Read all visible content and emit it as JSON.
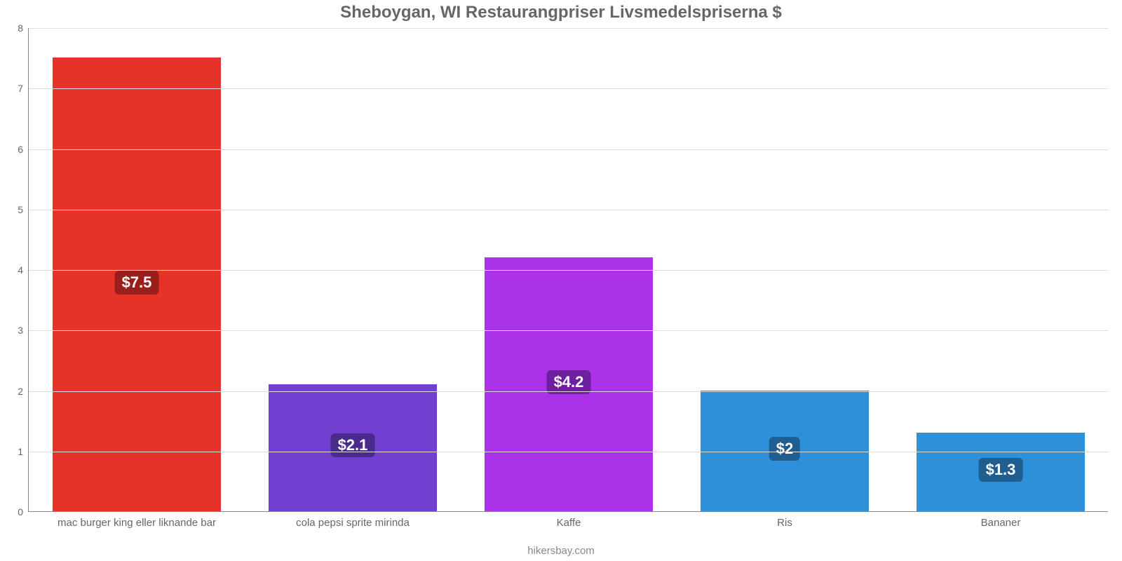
{
  "chart": {
    "type": "bar",
    "title": "Sheboygan, WI Restaurangpriser Livsmedelspriserna $",
    "title_color": "#666666",
    "title_fontsize": 24,
    "source": "hikersbay.com",
    "background_color": "#ffffff",
    "axis_color": "#888888",
    "grid_color": "#dddddd",
    "tick_label_color": "#666666",
    "ylim": [
      0,
      8
    ],
    "ytick_step": 1,
    "yticks": [
      0,
      1,
      2,
      3,
      4,
      5,
      6,
      7,
      8
    ],
    "bar_width": 0.78,
    "value_label_fontsize": 22,
    "value_label_bg_opacity": 0.55,
    "categories": [
      "mac burger king eller liknande bar",
      "cola pepsi sprite mirinda",
      "Kaffe",
      "Ris",
      "Bananer"
    ],
    "values": [
      7.5,
      2.1,
      4.2,
      2.0,
      1.3
    ],
    "value_labels": [
      "$7.5",
      "$2.1",
      "$4.2",
      "$2",
      "$1.3"
    ],
    "bar_colors": [
      "#e6332a",
      "#7240d0",
      "#ab32e8",
      "#2e90d9",
      "#2e90d9"
    ],
    "value_label_bg": [
      "#9a1f1a",
      "#4a2a8a",
      "#6e1fa0",
      "#1e5e90",
      "#1e5e90"
    ]
  }
}
